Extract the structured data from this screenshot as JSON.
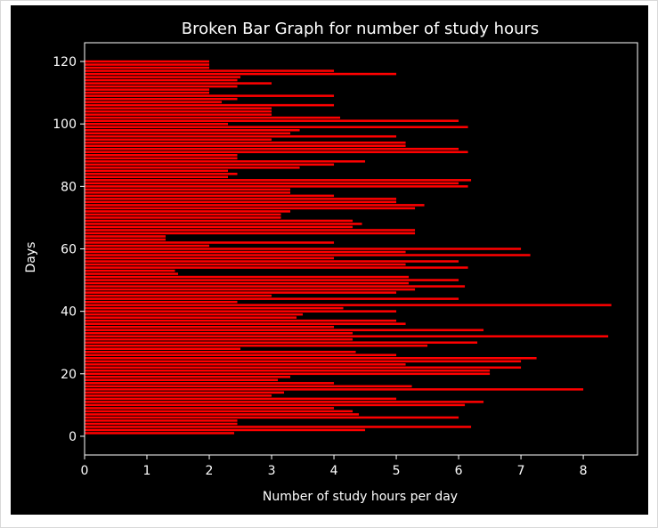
{
  "chart_data": {
    "type": "bar",
    "orientation": "horizontal",
    "title": "Broken Bar Graph for number of study hours",
    "xlabel": "Number of study hours per day",
    "ylabel": "Days",
    "xlim": [
      0,
      8.87
    ],
    "ylim": [
      -6,
      126
    ],
    "xticks": [
      0,
      1,
      2,
      3,
      4,
      5,
      6,
      7,
      8
    ],
    "yticks": [
      0,
      20,
      40,
      60,
      80,
      100,
      120
    ],
    "grid": false,
    "bar_color": "#ff0000",
    "background_color": "#000000",
    "text_color": "#ffffff",
    "y": [
      1,
      2,
      3,
      4,
      5,
      6,
      7,
      8,
      9,
      10,
      11,
      12,
      13,
      14,
      15,
      16,
      17,
      18,
      19,
      20,
      21,
      22,
      23,
      24,
      25,
      26,
      27,
      28,
      29,
      30,
      31,
      32,
      33,
      34,
      35,
      36,
      37,
      38,
      39,
      40,
      41,
      42,
      43,
      44,
      45,
      46,
      47,
      48,
      49,
      50,
      51,
      52,
      53,
      54,
      55,
      56,
      57,
      58,
      59,
      60,
      61,
      62,
      63,
      64,
      65,
      66,
      67,
      68,
      69,
      70,
      71,
      72,
      73,
      74,
      75,
      76,
      77,
      78,
      79,
      80,
      81,
      82,
      83,
      84,
      85,
      86,
      87,
      88,
      89,
      90,
      91,
      92,
      93,
      94,
      95,
      96,
      97,
      98,
      99,
      100,
      101,
      102,
      103,
      104,
      105,
      106,
      107,
      108,
      109,
      110,
      111,
      112,
      113,
      114,
      115,
      116,
      117,
      118,
      119,
      120
    ],
    "values": [
      2.4,
      4.5,
      6.2,
      2.45,
      2.45,
      6.0,
      4.4,
      4.3,
      4.0,
      6.1,
      6.4,
      5.0,
      3.0,
      3.2,
      8.0,
      5.25,
      4.0,
      3.1,
      3.3,
      6.5,
      6.5,
      7.0,
      5.15,
      7.0,
      7.25,
      5.0,
      4.35,
      2.5,
      5.5,
      6.3,
      4.3,
      8.4,
      4.3,
      6.4,
      4.0,
      5.15,
      5.0,
      3.4,
      3.5,
      5.0,
      4.15,
      8.45,
      2.45,
      6.0,
      3.0,
      5.0,
      5.3,
      6.1,
      5.2,
      6.0,
      5.2,
      1.5,
      1.45,
      6.15,
      5.15,
      6.0,
      4.0,
      7.15,
      5.15,
      7.0,
      2.0,
      4.0,
      1.3,
      1.3,
      5.3,
      5.3,
      4.3,
      4.45,
      4.3,
      3.15,
      3.15,
      3.3,
      5.3,
      5.45,
      5.0,
      5.0,
      4.0,
      3.3,
      3.3,
      6.15,
      6.0,
      6.2,
      2.3,
      2.45,
      2.3,
      3.45,
      4.0,
      4.5,
      2.45,
      2.45,
      6.15,
      6.0,
      5.15,
      5.15,
      3.0,
      5.0,
      3.3,
      3.45,
      6.15,
      2.3,
      6.0,
      4.1,
      3.0,
      3.0,
      3.0,
      4.0,
      2.2,
      2.45,
      4.0,
      2.0,
      2.0,
      2.45,
      3.0,
      2.45,
      2.5,
      5.0,
      4.0,
      2.0,
      2.0,
      2.0
    ]
  }
}
